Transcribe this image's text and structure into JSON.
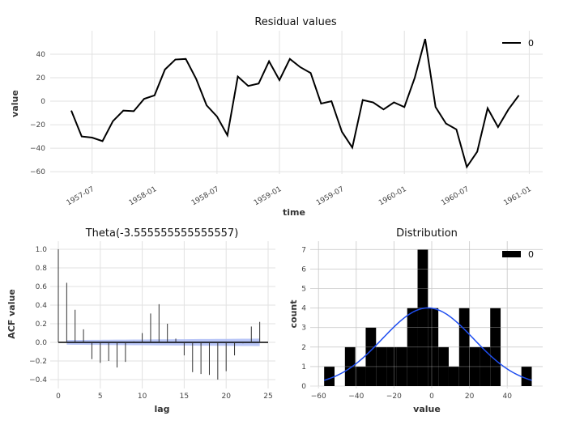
{
  "chart_data": [
    {
      "type": "line",
      "title": "Residual values",
      "xlabel": "time",
      "ylabel": "value",
      "x_start": "1957-05",
      "x_step": "month",
      "xticks": [
        "1957-07",
        "1958-01",
        "1958-07",
        "1959-01",
        "1959-07",
        "1960-01",
        "1960-07",
        "1961-01"
      ],
      "yticks": [
        -60,
        -40,
        -20,
        0,
        20,
        40
      ],
      "ylim": [
        -62,
        60
      ],
      "grid": true,
      "legend": "top-right",
      "series": [
        {
          "name": "0",
          "color": "#000000",
          "values": [
            -8,
            -30,
            -31,
            -34,
            -17,
            -8,
            -8.5,
            2,
            5,
            27,
            35.5,
            36,
            19,
            -3.5,
            -13,
            -29,
            21,
            13,
            15,
            34,
            18,
            36,
            29,
            24,
            -2,
            0,
            -26,
            -39.5,
            1,
            -1,
            -7,
            -1,
            -5,
            20,
            53,
            -5,
            -19,
            -24,
            -56,
            -43,
            -6,
            -22,
            -7,
            5
          ]
        }
      ]
    },
    {
      "type": "bar",
      "title": "Theta(-3.555555555555557)",
      "xlabel": "lag",
      "ylabel": "ACF value",
      "xticks": [
        0,
        5,
        10,
        15,
        20,
        25
      ],
      "yticks": [
        -0.4,
        -0.2,
        0.0,
        0.2,
        0.4,
        0.6,
        0.8,
        1.0
      ],
      "xlim": [
        -0.5,
        25
      ],
      "ylim": [
        -0.44,
        1.03
      ],
      "grid": true,
      "lags": [
        0,
        1,
        2,
        3,
        4,
        5,
        6,
        7,
        8,
        9,
        10,
        11,
        12,
        13,
        14,
        15,
        16,
        17,
        18,
        19,
        20,
        21,
        22,
        23,
        24
      ],
      "values": [
        1.0,
        0.64,
        0.35,
        0.14,
        -0.18,
        -0.22,
        -0.2,
        -0.27,
        -0.21,
        0.01,
        0.1,
        0.31,
        0.41,
        0.2,
        0.04,
        -0.14,
        -0.32,
        -0.34,
        -0.35,
        -0.4,
        -0.31,
        -0.14,
        -0.01,
        0.17,
        0.22
      ],
      "confidence_band": {
        "color": "#a8b8f5",
        "half_width_start": 0.025,
        "half_width_end": 0.04
      }
    },
    {
      "type": "bar",
      "title": "Distribution",
      "xlabel": "value",
      "ylabel": "count",
      "legend": "top-right",
      "xticks": [
        -60,
        -40,
        -20,
        0,
        20,
        40
      ],
      "yticks": [
        0,
        1,
        2,
        3,
        4,
        5,
        6,
        7
      ],
      "xlim": [
        -62,
        57
      ],
      "ylim": [
        0,
        7.4
      ],
      "grid": true,
      "bin_start": -57,
      "bin_width": 5.5,
      "counts": [
        1,
        0,
        2,
        1,
        3,
        2,
        2,
        2,
        4,
        7,
        4,
        2,
        1,
        4,
        2,
        2,
        4,
        0,
        0,
        1
      ],
      "series_name": "0",
      "bar_color": "#000000",
      "normal_fit": {
        "color": "#1f4ef0",
        "mean": -2,
        "std": 24.1
      }
    }
  ]
}
